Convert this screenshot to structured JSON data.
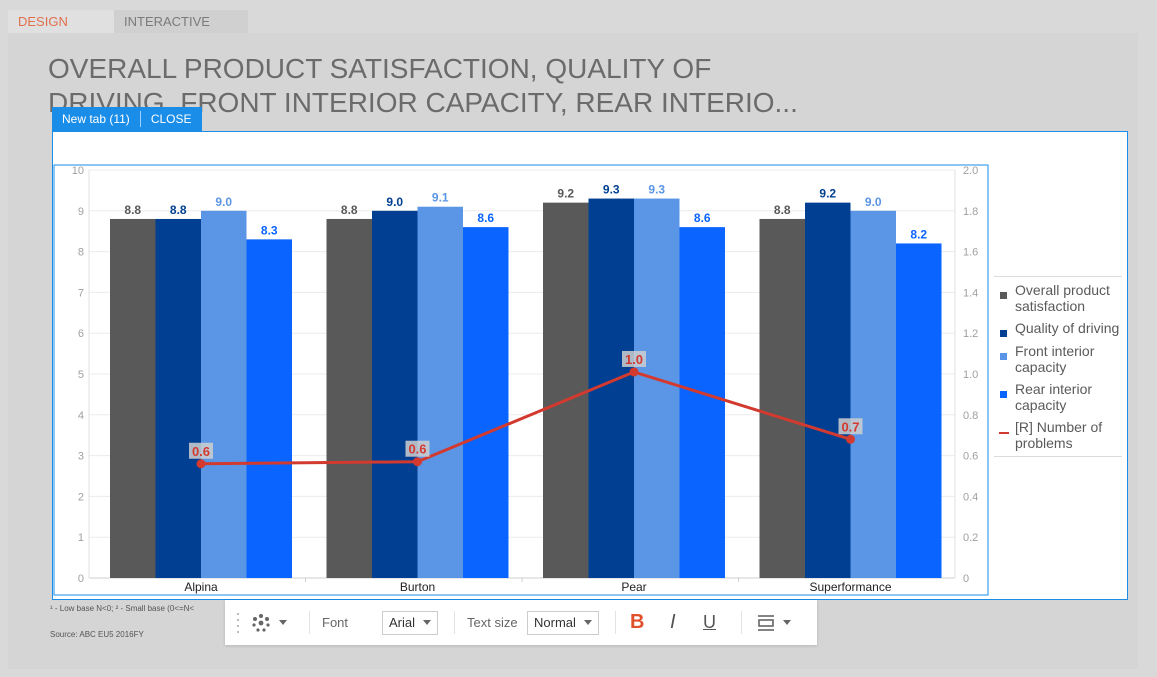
{
  "modes": {
    "design": "DESIGN MODE",
    "interactive": "INTERACTIVE MODE"
  },
  "title": "OVERALL PRODUCT SATISFACTION, QUALITY OF DRIVING, FRONT INTERIOR CAPACITY, REAR INTERIO...",
  "selection_bar": {
    "tab_label": "New tab (11)",
    "close_label": "CLOSE"
  },
  "colors": {
    "overall": "#595959",
    "quality": "#003f91",
    "front": "#5b96e6",
    "rear": "#0a64ff",
    "problems": "#d33a2f",
    "selection": "#1a8de8",
    "design_mode_text": "#e0704c"
  },
  "chart_data": {
    "type": "bar",
    "categories": [
      "Alpina",
      "Burton",
      "Pear",
      "Superformance"
    ],
    "series": [
      {
        "name": "Overall product satisfaction",
        "key": "overall",
        "values": [
          8.8,
          8.8,
          9.2,
          8.8
        ],
        "labels": [
          "8.8",
          "8.8",
          "9.2",
          "8.8"
        ]
      },
      {
        "name": "Quality of driving",
        "key": "quality",
        "values": [
          8.8,
          9.0,
          9.3,
          9.2
        ],
        "labels": [
          "8.8",
          "9.0",
          "9.3",
          "9.2"
        ]
      },
      {
        "name": "Front interior capacity",
        "key": "front",
        "values": [
          9.0,
          9.1,
          9.3,
          9.0
        ],
        "labels": [
          "9.0",
          "9.1",
          "9.3",
          "9.0"
        ]
      },
      {
        "name": "Rear interior capacity",
        "key": "rear",
        "values": [
          8.3,
          8.6,
          8.6,
          8.2
        ],
        "labels": [
          "8.3",
          "8.6",
          "8.6",
          "8.2"
        ]
      }
    ],
    "line_series": {
      "name": "[R] Number of problems",
      "key": "problems",
      "axis": "right",
      "values": [
        0.56,
        0.57,
        1.01,
        0.68
      ],
      "labels": [
        "0.6",
        "0.6",
        "1.0",
        "0.7"
      ]
    },
    "ylim": [
      0,
      10
    ],
    "yticks": [
      "0",
      "1",
      "2",
      "3",
      "4",
      "5",
      "6",
      "7",
      "8",
      "9",
      "10"
    ],
    "y2lim": [
      0,
      2
    ],
    "y2ticks": [
      "0",
      "0.2",
      "0.4",
      "0.6",
      "0.8",
      "1.0",
      "1.2",
      "1.4",
      "1.6",
      "1.8",
      "2.0"
    ],
    "legend": {
      "position": "right",
      "items": [
        {
          "label": "Overall product satisfaction",
          "key": "overall",
          "kind": "bar"
        },
        {
          "label": "Quality of driving",
          "key": "quality",
          "kind": "bar"
        },
        {
          "label": "Front interior capacity",
          "key": "front",
          "kind": "bar"
        },
        {
          "label": "Rear interior capacity",
          "key": "rear",
          "kind": "bar"
        },
        {
          "label": "[R] Number of problems",
          "key": "problems",
          "kind": "line"
        }
      ]
    },
    "grid": true
  },
  "footnote": "¹ - Low base N<0;   ² - Small base (0<=N<",
  "source": "Source: ABC EU5 2016FY",
  "toolbar": {
    "font_label": "Font",
    "font_value": "Arial",
    "size_label": "Text size",
    "size_value": "Normal",
    "bold": "B",
    "italic": "I",
    "underline": "U"
  }
}
